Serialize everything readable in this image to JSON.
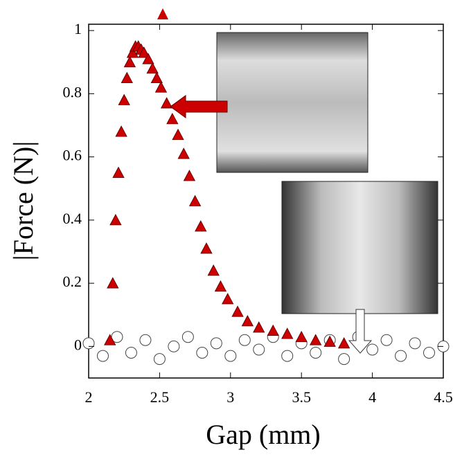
{
  "chart_data": {
    "type": "scatter",
    "x_label": "Gap (mm)",
    "y_label": "|Force (N)|",
    "xlim": [
      2,
      4.5
    ],
    "ylim": [
      -0.1,
      1.02
    ],
    "xticks": [
      2,
      2.5,
      3,
      3.5,
      4,
      4.5
    ],
    "yticks": [
      0,
      0.2,
      0.4,
      0.6,
      0.8,
      1
    ],
    "series": [
      {
        "color": "#cc0000",
        "marker": "triangle",
        "x": [
          2.15,
          2.17,
          2.19,
          2.21,
          2.23,
          2.25,
          2.27,
          2.29,
          2.31,
          2.33,
          2.35,
          2.37,
          2.39,
          2.42,
          2.45,
          2.48,
          2.51,
          2.55,
          2.59,
          2.63,
          2.67,
          2.71,
          2.75,
          2.79,
          2.83,
          2.88,
          2.93,
          2.98,
          3.05,
          3.12,
          3.2,
          3.3,
          3.4,
          3.5,
          3.6,
          3.7,
          3.8
        ],
        "values": [
          0.02,
          0.2,
          0.4,
          0.55,
          0.68,
          0.78,
          0.85,
          0.9,
          0.93,
          0.95,
          0.95,
          0.94,
          0.93,
          0.91,
          0.88,
          0.85,
          0.82,
          0.77,
          0.72,
          0.67,
          0.61,
          0.54,
          0.46,
          0.38,
          0.31,
          0.24,
          0.19,
          0.15,
          0.11,
          0.08,
          0.06,
          0.05,
          0.04,
          0.03,
          0.02,
          0.015,
          0.01
        ]
      },
      {
        "color": "#ffffff",
        "marker": "circle",
        "x": [
          2.0,
          2.1,
          2.2,
          2.3,
          2.4,
          2.5,
          2.6,
          2.7,
          2.8,
          2.9,
          3.0,
          3.1,
          3.2,
          3.3,
          3.4,
          3.5,
          3.6,
          3.7,
          3.8,
          3.9,
          4.0,
          4.1,
          4.2,
          4.3,
          4.4,
          4.5
        ],
        "values": [
          0.01,
          -0.03,
          0.03,
          -0.02,
          0.02,
          -0.04,
          0.0,
          0.03,
          -0.02,
          0.01,
          -0.03,
          0.02,
          -0.01,
          0.03,
          -0.03,
          0.01,
          -0.02,
          0.02,
          -0.04,
          0.03,
          -0.01,
          0.02,
          -0.03,
          0.01,
          -0.02,
          0.0
        ]
      }
    ]
  }
}
